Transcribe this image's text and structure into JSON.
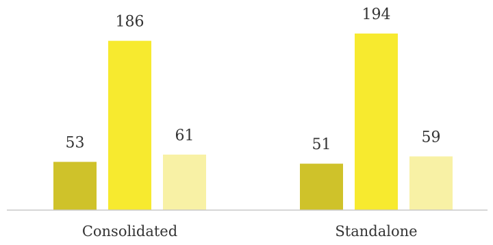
{
  "chart_data": {
    "type": "bar",
    "categories": [
      "Consolidated",
      "Standalone"
    ],
    "series": [
      {
        "values": [
          53,
          51
        ],
        "color": "#cfc22a"
      },
      {
        "values": [
          186,
          194
        ],
        "color": "#f7ea2f"
      },
      {
        "values": [
          61,
          59
        ],
        "color": "#f8f1a5"
      }
    ],
    "ylim": [
      0,
      200
    ],
    "grid": false,
    "legend": "none",
    "data_labels": true,
    "title": "",
    "xlabel": "",
    "ylabel": ""
  }
}
